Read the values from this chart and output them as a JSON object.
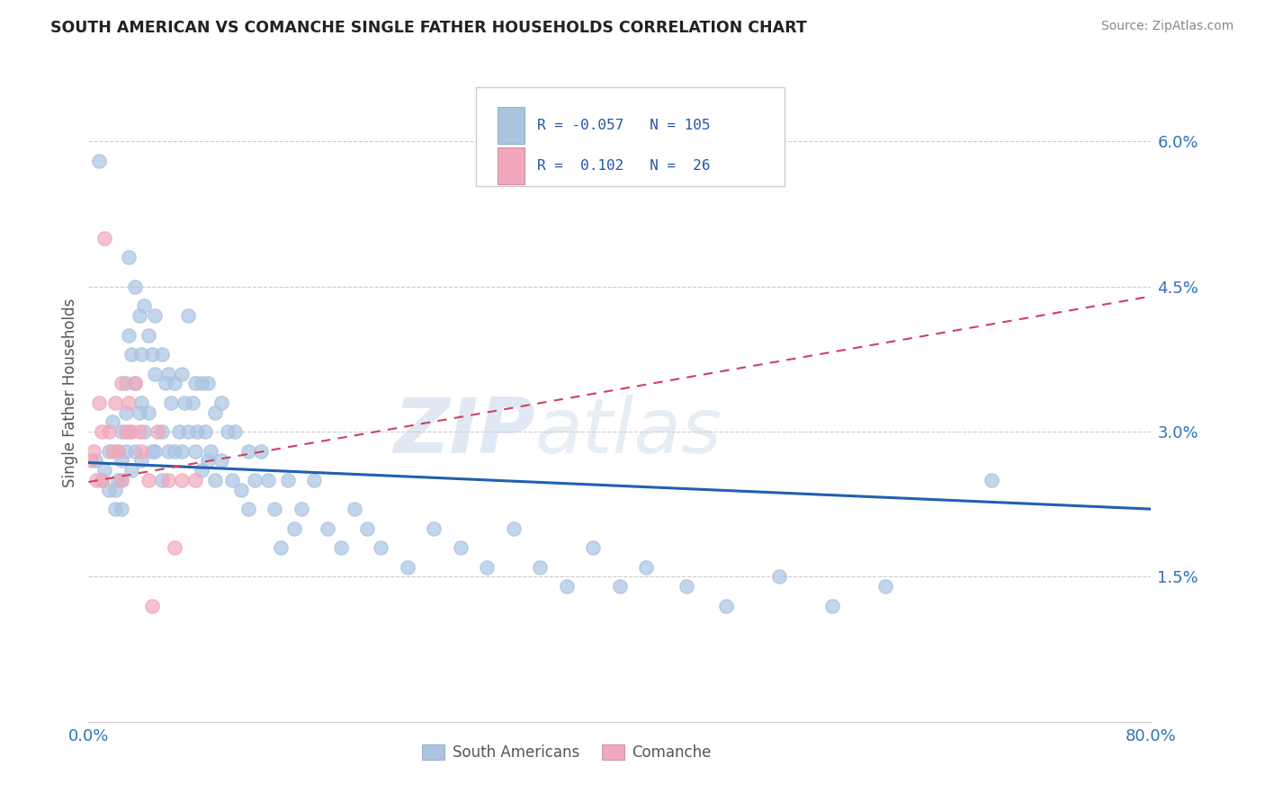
{
  "title": "SOUTH AMERICAN VS COMANCHE SINGLE FATHER HOUSEHOLDS CORRELATION CHART",
  "source": "Source: ZipAtlas.com",
  "ylabel": "Single Father Households",
  "xmin": 0.0,
  "xmax": 0.8,
  "ymin": 0.0,
  "ymax": 0.068,
  "yticks": [
    0.015,
    0.03,
    0.045,
    0.06
  ],
  "ytick_labels": [
    "1.5%",
    "3.0%",
    "4.5%",
    "6.0%"
  ],
  "xtick_labels": [
    "0.0%",
    "80.0%"
  ],
  "sa_color": "#aac4e2",
  "comanche_color": "#f2a8bc",
  "sa_line_color": "#2060b0",
  "comanche_line_color": "#d04060",
  "watermark_zip": "ZIP",
  "watermark_atlas": "atlas",
  "sa_scatter_x": [
    0.005,
    0.008,
    0.01,
    0.012,
    0.015,
    0.015,
    0.018,
    0.02,
    0.02,
    0.022,
    0.022,
    0.025,
    0.025,
    0.025,
    0.025,
    0.028,
    0.028,
    0.028,
    0.03,
    0.03,
    0.03,
    0.032,
    0.032,
    0.035,
    0.035,
    0.035,
    0.038,
    0.038,
    0.04,
    0.04,
    0.04,
    0.042,
    0.042,
    0.045,
    0.045,
    0.048,
    0.048,
    0.05,
    0.05,
    0.05,
    0.055,
    0.055,
    0.055,
    0.058,
    0.06,
    0.06,
    0.062,
    0.065,
    0.065,
    0.068,
    0.07,
    0.07,
    0.072,
    0.075,
    0.075,
    0.078,
    0.08,
    0.08,
    0.082,
    0.085,
    0.085,
    0.088,
    0.09,
    0.09,
    0.092,
    0.095,
    0.095,
    0.1,
    0.1,
    0.105,
    0.108,
    0.11,
    0.115,
    0.12,
    0.12,
    0.125,
    0.13,
    0.135,
    0.14,
    0.145,
    0.15,
    0.155,
    0.16,
    0.17,
    0.18,
    0.19,
    0.2,
    0.21,
    0.22,
    0.24,
    0.26,
    0.28,
    0.3,
    0.32,
    0.34,
    0.36,
    0.38,
    0.4,
    0.42,
    0.45,
    0.48,
    0.52,
    0.56,
    0.6,
    0.68
  ],
  "sa_scatter_y": [
    0.027,
    0.058,
    0.025,
    0.026,
    0.024,
    0.028,
    0.031,
    0.024,
    0.022,
    0.028,
    0.025,
    0.03,
    0.027,
    0.025,
    0.022,
    0.035,
    0.032,
    0.028,
    0.048,
    0.04,
    0.03,
    0.038,
    0.026,
    0.045,
    0.035,
    0.028,
    0.042,
    0.032,
    0.038,
    0.033,
    0.027,
    0.043,
    0.03,
    0.04,
    0.032,
    0.038,
    0.028,
    0.042,
    0.036,
    0.028,
    0.038,
    0.03,
    0.025,
    0.035,
    0.036,
    0.028,
    0.033,
    0.035,
    0.028,
    0.03,
    0.036,
    0.028,
    0.033,
    0.042,
    0.03,
    0.033,
    0.035,
    0.028,
    0.03,
    0.035,
    0.026,
    0.03,
    0.035,
    0.027,
    0.028,
    0.032,
    0.025,
    0.033,
    0.027,
    0.03,
    0.025,
    0.03,
    0.024,
    0.028,
    0.022,
    0.025,
    0.028,
    0.025,
    0.022,
    0.018,
    0.025,
    0.02,
    0.022,
    0.025,
    0.02,
    0.018,
    0.022,
    0.02,
    0.018,
    0.016,
    0.02,
    0.018,
    0.016,
    0.02,
    0.016,
    0.014,
    0.018,
    0.014,
    0.016,
    0.014,
    0.012,
    0.015,
    0.012,
    0.014,
    0.025
  ],
  "comanche_scatter_x": [
    0.002,
    0.004,
    0.006,
    0.008,
    0.01,
    0.01,
    0.012,
    0.015,
    0.018,
    0.02,
    0.022,
    0.025,
    0.025,
    0.028,
    0.03,
    0.032,
    0.035,
    0.038,
    0.04,
    0.045,
    0.048,
    0.052,
    0.06,
    0.065,
    0.07,
    0.08
  ],
  "comanche_scatter_y": [
    0.027,
    0.028,
    0.025,
    0.033,
    0.03,
    0.025,
    0.05,
    0.03,
    0.028,
    0.033,
    0.028,
    0.035,
    0.025,
    0.03,
    0.033,
    0.03,
    0.035,
    0.03,
    0.028,
    0.025,
    0.012,
    0.03,
    0.025,
    0.018,
    0.025,
    0.025
  ],
  "sa_trendline_x": [
    0.0,
    0.8
  ],
  "sa_trendline_y": [
    0.0268,
    0.022
  ],
  "comanche_trendline_x": [
    0.0,
    0.8
  ],
  "comanche_trendline_y": [
    0.0248,
    0.044
  ]
}
